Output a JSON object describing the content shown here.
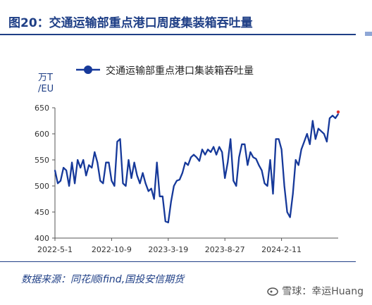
{
  "header": {
    "title": "图20：交通运输部重点港口周度集装箱吞吐量"
  },
  "chart_data": {
    "type": "line",
    "title": "",
    "ylabel": "万TEU",
    "ylim": [
      400,
      650
    ],
    "yticks": [
      400,
      450,
      500,
      550,
      600,
      650
    ],
    "xtick_labels": [
      "2022-5-1",
      "2022-10-9",
      "2023-3-19",
      "2023-8-27",
      "2024-2-11"
    ],
    "legend": {
      "position": "top",
      "entries": [
        "交通运输部重点港口集装箱吞吐量"
      ]
    },
    "grid": false,
    "series": [
      {
        "name": "交通运输部重点港口集装箱吞吐量",
        "color": "#16399a",
        "values": [
          530,
          505,
          510,
          535,
          530,
          500,
          545,
          505,
          550,
          535,
          550,
          520,
          540,
          535,
          565,
          545,
          510,
          505,
          545,
          545,
          510,
          500,
          585,
          590,
          505,
          500,
          550,
          515,
          545,
          520,
          505,
          525,
          505,
          490,
          495,
          475,
          545,
          480,
          480,
          432,
          430,
          470,
          500,
          510,
          512,
          525,
          545,
          540,
          555,
          560,
          555,
          548,
          570,
          560,
          570,
          565,
          575,
          560,
          575,
          565,
          515,
          545,
          590,
          510,
          500,
          555,
          580,
          580,
          540,
          565,
          555,
          552,
          540,
          530,
          505,
          500,
          550,
          485,
          590,
          590,
          570,
          500,
          450,
          440,
          485,
          550,
          540,
          570,
          585,
          600,
          580,
          625,
          590,
          610,
          605,
          600,
          585,
          630,
          635,
          630,
          638
        ]
      }
    ]
  },
  "footer": {
    "source": "数据来源：同花顺ifind,国投安信期货",
    "watermark": "雪球：幸运Huang"
  }
}
